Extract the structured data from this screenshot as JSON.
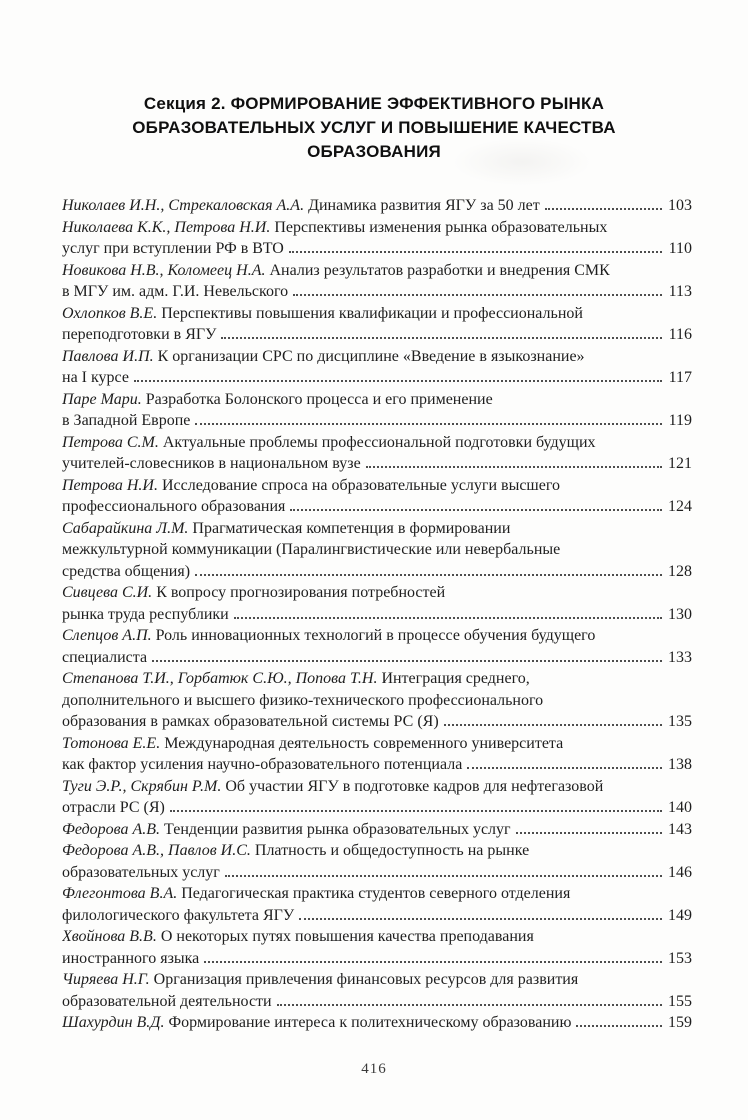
{
  "heading": {
    "lines": [
      "Секция 2. ФОРМИРОВАНИЕ ЭФФЕКТИВНОГО РЫНКА",
      "ОБРАЗОВАТЕЛЬНЫХ УСЛУГ И ПОВЫШЕНИЕ КАЧЕСТВА",
      "ОБРАЗОВАНИЯ"
    ]
  },
  "toc": {
    "entries": [
      {
        "authors": "Николаев И.Н., Стрекаловская А.А.",
        "lines": [
          "Динамика развития ЯГУ за 50 лет"
        ],
        "page": "103"
      },
      {
        "authors": "Николаева К.К., Петрова Н.И.",
        "lines": [
          "Перспективы изменения рынка образовательных",
          "услуг при вступлении РФ в ВТО"
        ],
        "page": "110"
      },
      {
        "authors": "Новикова Н.В., Коломеец Н.А.",
        "lines": [
          "Анализ результатов разработки и внедрения СМК",
          "в МГУ им. адм. Г.И. Невельского"
        ],
        "page": "113"
      },
      {
        "authors": "Охлопков В.Е.",
        "lines": [
          "Перспективы повышения квалификации и профессиональной",
          "переподготовки в ЯГУ"
        ],
        "page": "116"
      },
      {
        "authors": "Павлова И.П.",
        "lines": [
          "К организации СРС по дисциплине «Введение в языкознание»",
          "на I курсе"
        ],
        "page": "117"
      },
      {
        "authors": "Паре Мари.",
        "lines": [
          "Разработка Болонского процесса и его применение",
          "в Западной Европе"
        ],
        "page": "119"
      },
      {
        "authors": "Петрова С.М.",
        "lines": [
          "Актуальные проблемы профессиональной подготовки будущих",
          "учителей-словесников в национальном вузе"
        ],
        "page": "121"
      },
      {
        "authors": "Петрова Н.И.",
        "lines": [
          "Исследование спроса на образовательные услуги высшего",
          "профессионального образования"
        ],
        "page": "124"
      },
      {
        "authors": "Сабарайкина Л.М.",
        "lines": [
          "Прагматическая компетенция в формировании",
          "межкультурной коммуникации (Паралингвистические или невербальные",
          "средства общения)"
        ],
        "page": "128"
      },
      {
        "authors": "Сивцева С.И.",
        "lines": [
          "К вопросу прогнозирования потребностей",
          "рынка труда республики"
        ],
        "page": "130"
      },
      {
        "authors": "Слепцов А.П.",
        "lines": [
          "Роль инновационных технологий в процессе обучения будущего",
          "специалиста"
        ],
        "page": "133"
      },
      {
        "authors": "Степанова Т.И., Горбатюк С.Ю., Попова Т.Н.",
        "lines": [
          "Интеграция среднего,",
          "дополнительного и высшего физико-технического профессионального",
          "образования в рамках образовательной системы РС (Я)"
        ],
        "page": "135"
      },
      {
        "authors": "Тотонова Е.Е.",
        "lines": [
          "Международная деятельность современного университета",
          "как фактор усиления научно-образовательного потенциала"
        ],
        "page": "138"
      },
      {
        "authors": "Туги Э.Р., Скрябин Р.М.",
        "lines": [
          "Об участии ЯГУ в подготовке кадров для нефтегазовой",
          "отрасли РС (Я)"
        ],
        "page": "140"
      },
      {
        "authors": "Федорова А.В.",
        "lines": [
          "Тенденции развития рынка образовательных услуг"
        ],
        "page": "143"
      },
      {
        "authors": "Федорова А.В., Павлов И.С.",
        "lines": [
          "Платность и общедоступность на рынке",
          "образовательных услуг"
        ],
        "page": "146"
      },
      {
        "authors": "Флегонтова В.А.",
        "lines": [
          "Педагогическая практика студентов северного отделения",
          "филологического факультета ЯГУ"
        ],
        "page": "149"
      },
      {
        "authors": "Хвойнова В.В.",
        "lines": [
          "О некоторых путях повышения качества преподавания",
          "иностранного языка"
        ],
        "page": "153"
      },
      {
        "authors": "Чиряева Н.Г.",
        "lines": [
          "Организация привлечения финансовых ресурсов для развития",
          "образовательной деятельности"
        ],
        "page": "155"
      },
      {
        "authors": "Шахурдин В.Д.",
        "lines": [
          "Формирование интереса к политехническому образованию"
        ],
        "page": "159"
      }
    ]
  },
  "footer": {
    "page_number": "416"
  }
}
